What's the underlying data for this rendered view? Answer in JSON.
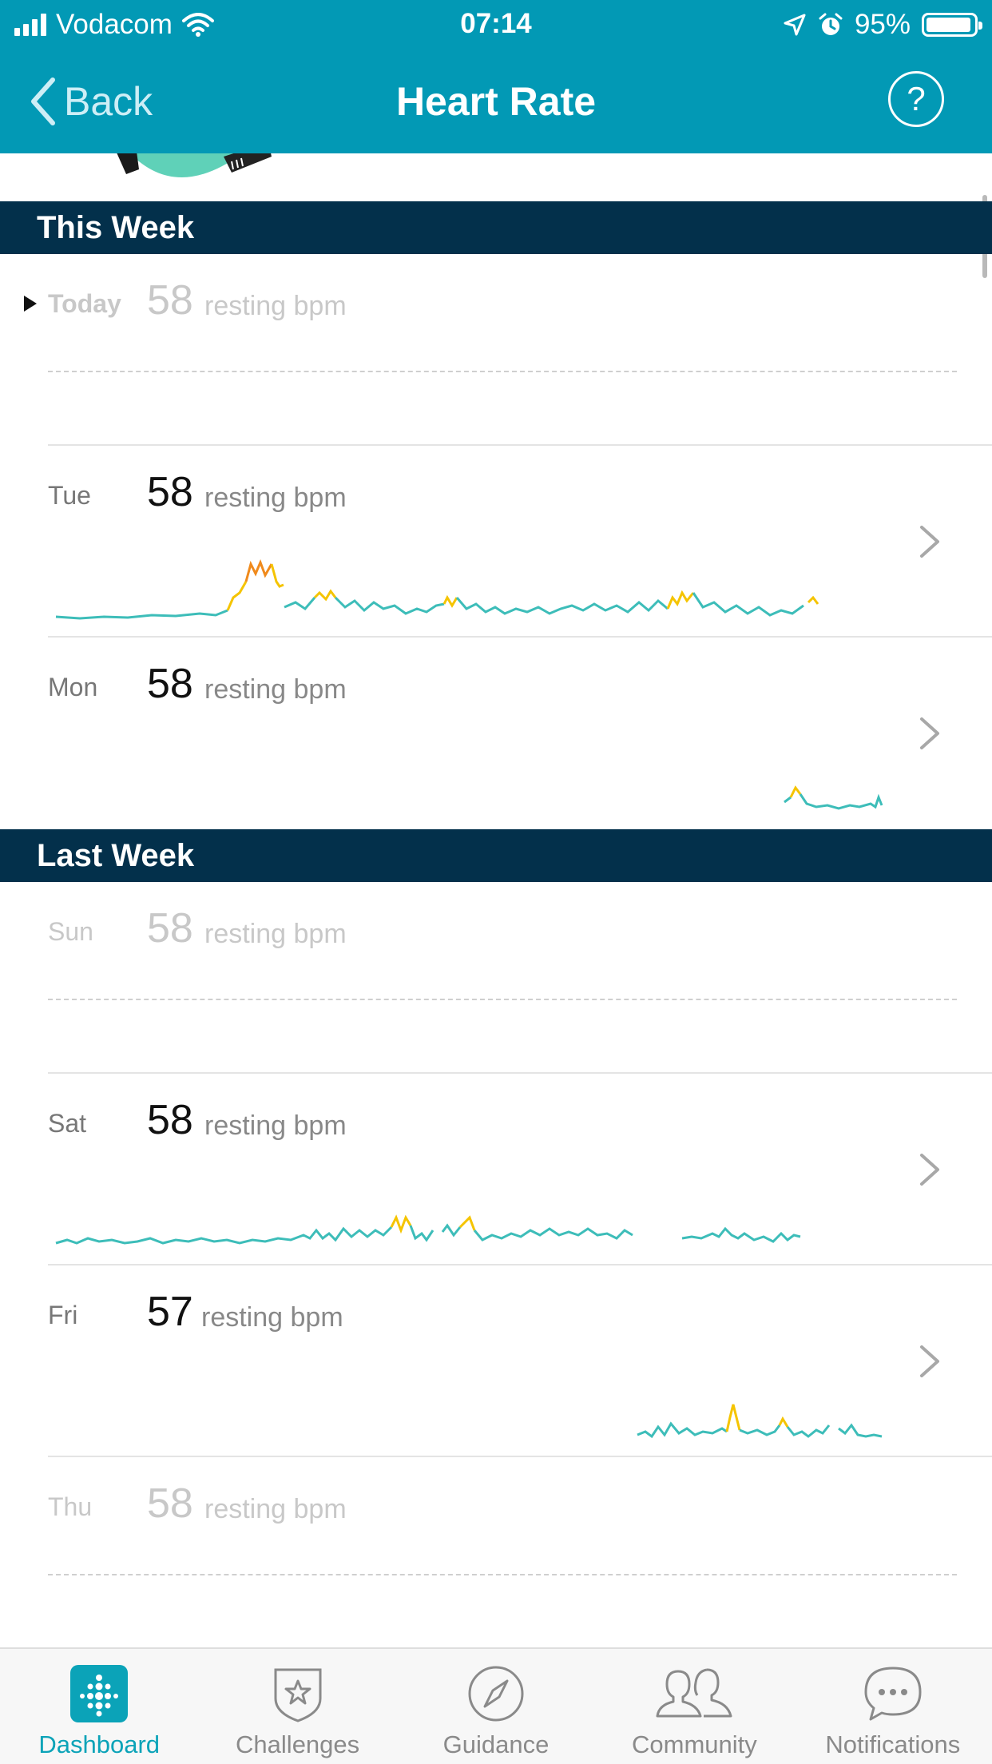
{
  "status_bar": {
    "carrier": "Vodacom",
    "time": "07:14",
    "battery": "95%",
    "battery_level": 0.95
  },
  "nav": {
    "back_label": "Back",
    "title": "Heart Rate",
    "help_label": "?"
  },
  "sections": [
    {
      "title": "This Week",
      "days": [
        {
          "day": "Today",
          "bpm": "58",
          "unit": "resting bpm",
          "has_data": false,
          "selected": true
        },
        {
          "day": "Tue",
          "bpm": "58",
          "unit": "resting bpm",
          "has_data": true
        },
        {
          "day": "Mon",
          "bpm": "58",
          "unit": "resting bpm",
          "has_data": true
        }
      ]
    },
    {
      "title": "Last Week",
      "days": [
        {
          "day": "Sun",
          "bpm": "58",
          "unit": "resting bpm",
          "has_data": false
        },
        {
          "day": "Sat",
          "bpm": "58",
          "unit": "resting bpm",
          "has_data": true
        },
        {
          "day": "Fri",
          "bpm": "57",
          "unit": "resting bpm",
          "has_data": true
        },
        {
          "day": "Thu",
          "bpm": "58",
          "unit": "resting bpm",
          "has_data": false
        }
      ]
    }
  ],
  "colors": {
    "brand": "#0299b5",
    "section_header": "#03304b",
    "line_normal": "#3dbdb9",
    "line_elevated": "#f5c400",
    "line_peak": "#f08a1c",
    "tab_active": "#0ba3b8"
  },
  "tabs": [
    {
      "label": "Dashboard",
      "icon": "dashboard-icon",
      "active": true
    },
    {
      "label": "Challenges",
      "icon": "star-shield-icon",
      "active": false
    },
    {
      "label": "Guidance",
      "icon": "compass-icon",
      "active": false
    },
    {
      "label": "Community",
      "icon": "people-icon",
      "active": false
    },
    {
      "label": "Notifications",
      "icon": "chat-bubble-icon",
      "active": false
    }
  ]
}
